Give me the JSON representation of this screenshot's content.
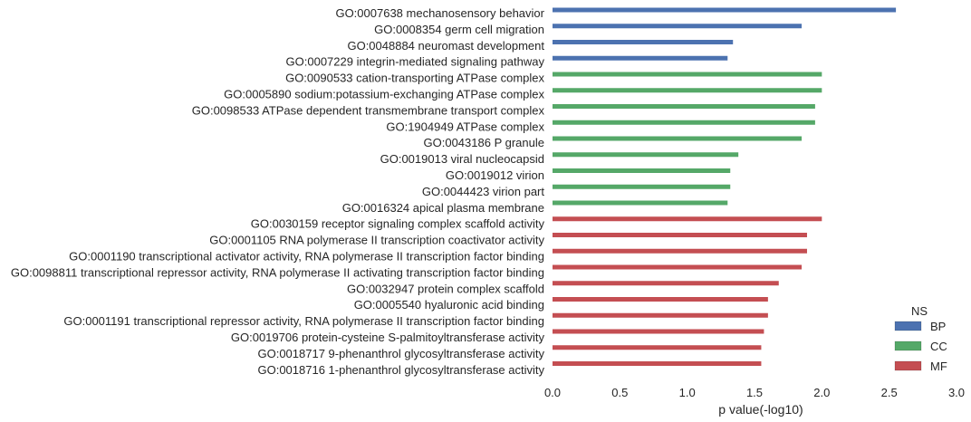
{
  "chart_data": {
    "type": "bar",
    "orientation": "horizontal",
    "xlabel": "p value(-log10)",
    "xlim": [
      0,
      3.0
    ],
    "xticks": [
      "0.0",
      "0.5",
      "1.0",
      "1.5",
      "2.0",
      "2.5",
      "3.0"
    ],
    "grid": false,
    "legend": {
      "title": "NS",
      "placement": "lower-right",
      "entries": [
        {
          "name": "BP",
          "color": "#4c72b0"
        },
        {
          "name": "CC",
          "color": "#55a868"
        },
        {
          "name": "MF",
          "color": "#c44e52"
        }
      ]
    },
    "bars": [
      {
        "label": "GO:0007638 mechanosensory behavior",
        "value": 2.55,
        "ns": "BP"
      },
      {
        "label": "GO:0008354 germ cell migration",
        "value": 1.85,
        "ns": "BP"
      },
      {
        "label": "GO:0048884 neuromast development",
        "value": 1.34,
        "ns": "BP"
      },
      {
        "label": "GO:0007229 integrin-mediated signaling pathway",
        "value": 1.3,
        "ns": "BP"
      },
      {
        "label": "GO:0090533 cation-transporting ATPase complex",
        "value": 2.0,
        "ns": "CC"
      },
      {
        "label": "GO:0005890 sodium:potassium-exchanging ATPase complex",
        "value": 2.0,
        "ns": "CC"
      },
      {
        "label": "GO:0098533 ATPase dependent transmembrane transport complex",
        "value": 1.95,
        "ns": "CC"
      },
      {
        "label": "GO:1904949 ATPase complex",
        "value": 1.95,
        "ns": "CC"
      },
      {
        "label": "GO:0043186 P granule",
        "value": 1.85,
        "ns": "CC"
      },
      {
        "label": "GO:0019013 viral nucleocapsid",
        "value": 1.38,
        "ns": "CC"
      },
      {
        "label": "GO:0019012 virion",
        "value": 1.32,
        "ns": "CC"
      },
      {
        "label": "GO:0044423 virion part",
        "value": 1.32,
        "ns": "CC"
      },
      {
        "label": "GO:0016324 apical plasma membrane",
        "value": 1.3,
        "ns": "CC"
      },
      {
        "label": "GO:0030159 receptor signaling complex scaffold activity",
        "value": 2.0,
        "ns": "MF"
      },
      {
        "label": "GO:0001105 RNA polymerase II transcription coactivator activity",
        "value": 1.89,
        "ns": "MF"
      },
      {
        "label": "GO:0001190 transcriptional activator activity, RNA polymerase II transcription factor binding",
        "value": 1.89,
        "ns": "MF"
      },
      {
        "label": "GO:0098811 transcriptional repressor activity, RNA polymerase II activating transcription factor binding",
        "value": 1.85,
        "ns": "MF"
      },
      {
        "label": "GO:0032947 protein complex scaffold",
        "value": 1.68,
        "ns": "MF"
      },
      {
        "label": "GO:0005540 hyaluronic acid binding",
        "value": 1.6,
        "ns": "MF"
      },
      {
        "label": "GO:0001191 transcriptional repressor activity, RNA polymerase II transcription factor binding",
        "value": 1.6,
        "ns": "MF"
      },
      {
        "label": "GO:0019706 protein-cysteine S-palmitoyltransferase activity",
        "value": 1.57,
        "ns": "MF"
      },
      {
        "label": "GO:0018717 9-phenanthrol glycosyltransferase activity",
        "value": 1.55,
        "ns": "MF"
      },
      {
        "label": "GO:0018716 1-phenanthrol glycosyltransferase activity",
        "value": 1.55,
        "ns": "MF"
      }
    ]
  }
}
